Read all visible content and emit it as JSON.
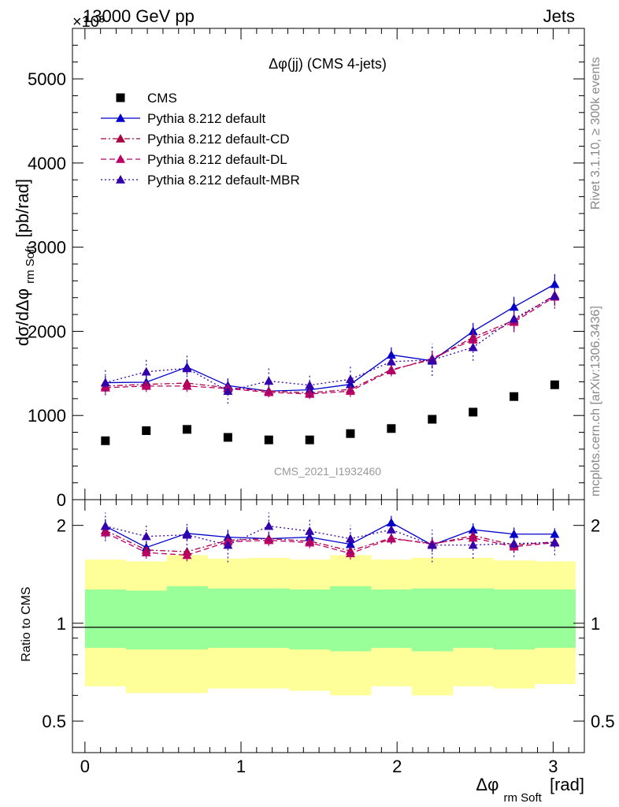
{
  "header": {
    "energy_label": "13000 GeV pp",
    "process_label": "Jets",
    "exponent_label": "×10³"
  },
  "side_labels": {
    "rivet": "Rivet 3.1.10, ≥ 300k events",
    "mcplots": "mcplots.cern.ch [arXiv:1306.3436]"
  },
  "chart_data": [
    {
      "type": "scatter",
      "title": "Δφ(jj) (CMS 4-jets)",
      "watermark": "CMS_2021_I1932460",
      "ylabel_main": "dσ/dΔφ",
      "ylabel_sub": "rm Soft",
      "ylabel_unit": "[pb/rad]",
      "xlabel_main": "Δφ",
      "xlabel_sub": "rm Soft",
      "xlabel_unit": "[rad]",
      "xlim": [
        -0.08,
        3.2
      ],
      "ylim": [
        0,
        5600
      ],
      "ytick_labels": [
        "0",
        "1000",
        "2000",
        "3000",
        "4000",
        "5000"
      ],
      "x": [
        0.131,
        0.393,
        0.654,
        0.916,
        1.178,
        1.44,
        1.701,
        1.963,
        2.225,
        2.487,
        2.749,
        3.01
      ],
      "series": [
        {
          "name": "CMS",
          "color": "#000000",
          "marker": "square",
          "dash": "none",
          "values": [
            700,
            820,
            835,
            740,
            710,
            710,
            785,
            845,
            955,
            1040,
            1225,
            1365
          ]
        },
        {
          "name": "Pythia 8.212 default",
          "color": "#0000cc",
          "marker": "triangle",
          "dash": "solid",
          "values": [
            1390,
            1395,
            1575,
            1355,
            1290,
            1305,
            1370,
            1720,
            1650,
            2000,
            2290,
            2560
          ],
          "errors": [
            80,
            80,
            90,
            80,
            70,
            70,
            80,
            90,
            90,
            100,
            120,
            120
          ]
        },
        {
          "name": "Pythia 8.212 default-CD",
          "color": "#aa0044",
          "marker": "triangle",
          "dash": "dashdot",
          "values": [
            1350,
            1370,
            1385,
            1330,
            1290,
            1270,
            1310,
            1545,
            1665,
            1930,
            2130,
            2430
          ],
          "errors": [
            70,
            70,
            70,
            70,
            60,
            60,
            70,
            70,
            80,
            90,
            110,
            110
          ]
        },
        {
          "name": "Pythia 8.212 default-DL",
          "color": "#bb0066",
          "marker": "triangle",
          "dash": "dashed",
          "values": [
            1330,
            1350,
            1350,
            1320,
            1275,
            1255,
            1290,
            1535,
            1680,
            1900,
            2110,
            2410
          ],
          "errors": [
            70,
            70,
            70,
            70,
            60,
            60,
            70,
            70,
            80,
            90,
            110,
            110
          ]
        },
        {
          "name": "Pythia 8.212 default-MBR",
          "color": "#3300aa",
          "marker": "triangle",
          "dash": "dotted",
          "values": [
            1390,
            1520,
            1560,
            1290,
            1410,
            1360,
            1430,
            1640,
            1660,
            1810,
            2150,
            2420
          ],
          "errors": [
            150,
            160,
            150,
            150,
            150,
            140,
            150,
            150,
            190,
            160,
            160,
            150
          ]
        }
      ]
    },
    {
      "type": "scatter",
      "ylabel": "Ratio to CMS",
      "yscale": "log",
      "ylim": [
        0.4,
        2.4
      ],
      "ytick_labels": [
        "0.5",
        "1",
        "2"
      ],
      "xtick_labels": [
        "0",
        "1",
        "2",
        "3"
      ],
      "band_yellow": {
        "low": [
          0.64,
          0.61,
          0.61,
          0.63,
          0.63,
          0.62,
          0.6,
          0.64,
          0.6,
          0.64,
          0.63,
          0.65
        ],
        "high": [
          1.57,
          1.55,
          1.62,
          1.58,
          1.59,
          1.57,
          1.62,
          1.57,
          1.59,
          1.59,
          1.56,
          1.55
        ]
      },
      "band_green": {
        "low": [
          0.84,
          0.83,
          0.83,
          0.84,
          0.84,
          0.83,
          0.82,
          0.84,
          0.82,
          0.84,
          0.83,
          0.84
        ],
        "high": [
          1.27,
          1.26,
          1.3,
          1.28,
          1.28,
          1.27,
          1.3,
          1.27,
          1.28,
          1.28,
          1.27,
          1.27
        ]
      },
      "series": [
        {
          "name": "Pythia 8.212 default",
          "color": "#0000cc",
          "dash": "solid",
          "values": [
            1.99,
            1.71,
            1.89,
            1.84,
            1.82,
            1.84,
            1.75,
            2.04,
            1.74,
            1.94,
            1.88,
            1.88
          ],
          "errors": [
            0.1,
            0.08,
            0.09,
            0.09,
            0.08,
            0.08,
            0.09,
            0.1,
            0.08,
            0.09,
            0.09,
            0.08
          ]
        },
        {
          "name": "Pythia 8.212 default-CD",
          "color": "#aa0044",
          "dash": "dashdot",
          "values": [
            1.93,
            1.68,
            1.66,
            1.8,
            1.82,
            1.79,
            1.67,
            1.83,
            1.75,
            1.86,
            1.74,
            1.78
          ],
          "errors": [
            0.08,
            0.07,
            0.07,
            0.08,
            0.07,
            0.07,
            0.07,
            0.07,
            0.07,
            0.08,
            0.07,
            0.07
          ]
        },
        {
          "name": "Pythia 8.212 default-DL",
          "color": "#bb0066",
          "dash": "dashed",
          "values": [
            1.9,
            1.65,
            1.62,
            1.78,
            1.8,
            1.77,
            1.64,
            1.82,
            1.76,
            1.83,
            1.72,
            1.77
          ],
          "errors": [
            0.08,
            0.07,
            0.07,
            0.08,
            0.07,
            0.07,
            0.07,
            0.07,
            0.07,
            0.08,
            0.07,
            0.07
          ]
        },
        {
          "name": "Pythia 8.212 default-MBR",
          "color": "#3300aa",
          "dash": "dotted",
          "values": [
            1.99,
            1.85,
            1.87,
            1.74,
            1.99,
            1.92,
            1.82,
            1.94,
            1.74,
            1.74,
            1.76,
            1.77
          ],
          "errors": [
            0.2,
            0.18,
            0.18,
            0.2,
            0.2,
            0.18,
            0.18,
            0.18,
            0.2,
            0.16,
            0.16,
            0.15
          ]
        }
      ]
    }
  ]
}
